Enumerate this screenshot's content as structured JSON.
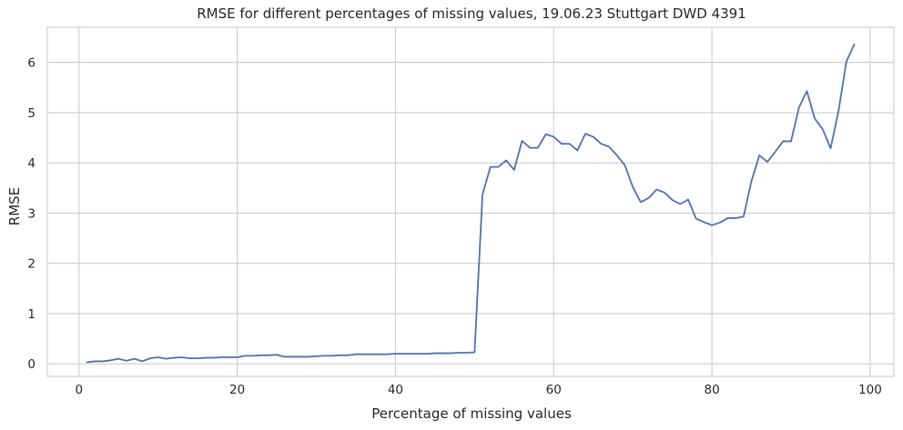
{
  "chart_data": {
    "type": "line",
    "title": "RMSE for different percentages of missing values, 19.06.23 Stuttgart DWD 4391",
    "xlabel": "Percentage of missing values",
    "ylabel": "RMSE",
    "xlim": [
      -4,
      103
    ],
    "ylim": [
      -0.25,
      6.7
    ],
    "xticks": [
      0,
      20,
      40,
      60,
      80,
      100
    ],
    "yticks": [
      0,
      1,
      2,
      3,
      4,
      5,
      6
    ],
    "grid": true,
    "series": [
      {
        "color": "#4c72b0",
        "x": [
          1,
          2,
          3,
          4,
          5,
          6,
          7,
          8,
          9,
          10,
          11,
          12,
          13,
          14,
          15,
          16,
          17,
          18,
          19,
          20,
          21,
          22,
          23,
          24,
          25,
          26,
          27,
          28,
          29,
          30,
          31,
          32,
          33,
          34,
          35,
          36,
          37,
          38,
          39,
          40,
          41,
          42,
          43,
          44,
          45,
          46,
          47,
          48,
          49,
          50,
          51,
          52,
          53,
          54,
          55,
          56,
          57,
          58,
          59,
          60,
          61,
          62,
          63,
          64,
          65,
          66,
          67,
          68,
          69,
          70,
          71,
          72,
          73,
          74,
          75,
          76,
          77,
          78,
          79,
          80,
          81,
          82,
          83,
          84,
          85,
          86,
          87,
          88,
          89,
          90,
          91,
          92,
          93,
          94,
          95,
          96,
          97,
          98
        ],
        "y": [
          0.03,
          0.05,
          0.05,
          0.07,
          0.1,
          0.06,
          0.1,
          0.05,
          0.11,
          0.13,
          0.1,
          0.12,
          0.13,
          0.11,
          0.11,
          0.12,
          0.12,
          0.13,
          0.13,
          0.13,
          0.16,
          0.16,
          0.17,
          0.17,
          0.18,
          0.14,
          0.14,
          0.14,
          0.14,
          0.15,
          0.16,
          0.16,
          0.17,
          0.17,
          0.19,
          0.19,
          0.19,
          0.19,
          0.19,
          0.2,
          0.2,
          0.2,
          0.2,
          0.2,
          0.21,
          0.21,
          0.21,
          0.22,
          0.22,
          0.23,
          3.37,
          3.92,
          3.92,
          4.05,
          3.86,
          4.44,
          4.3,
          4.3,
          4.57,
          4.52,
          4.38,
          4.38,
          4.25,
          4.58,
          4.52,
          4.38,
          4.32,
          4.15,
          3.95,
          3.52,
          3.22,
          3.3,
          3.47,
          3.41,
          3.26,
          3.18,
          3.27,
          2.89,
          2.82,
          2.76,
          2.81,
          2.9,
          2.9,
          2.93,
          3.64,
          4.15,
          4.02,
          4.22,
          4.43,
          4.43,
          5.1,
          5.43,
          4.88,
          4.67,
          4.29,
          5.03,
          6.02,
          6.36
        ]
      }
    ]
  }
}
